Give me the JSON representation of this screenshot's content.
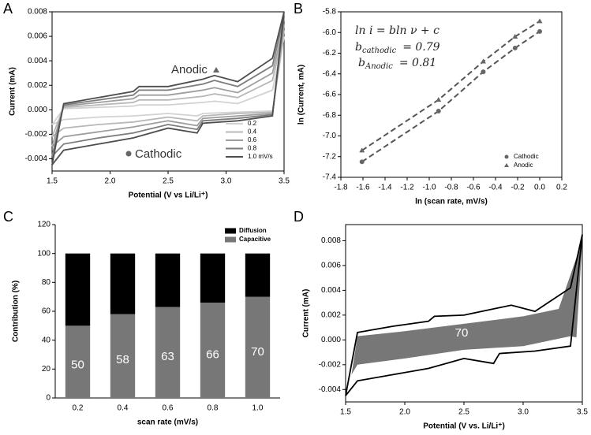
{
  "chart_data": [
    {
      "type": "line",
      "label": "A",
      "xlabel": "Potential (V vs Li/Li⁺)",
      "ylabel": "Current (mA)",
      "xlim": [
        1.5,
        3.5
      ],
      "xticks": [
        1.5,
        {
          "value": 2,
          "label": "2.0"
        },
        2.5,
        {
          "value": 3,
          "label": "3.0"
        },
        3.5
      ],
      "ylim": [
        -0.005,
        0.008
      ],
      "yticks": [
        -0.004,
        -0.002,
        {
          "value": 0,
          "label": "0.000"
        },
        0.002,
        0.004,
        0.006,
        0.008
      ],
      "axes_box": true,
      "legend": "lower right",
      "annotations": [
        "Anodic",
        "Cathodic"
      ],
      "x": [
        1.5,
        1.6,
        1.9,
        2.2,
        2.25,
        2.5,
        2.8,
        2.9,
        3.1,
        3.4,
        3.5,
        3.4,
        3.1,
        2.8,
        2.75,
        2.5,
        2.2,
        1.9,
        1.6,
        1.5
      ],
      "series": [
        {
          "name": "0.2",
          "color": "#d2d2d2",
          "values": [
            -0.0012,
            0.0001,
            0.0002,
            0.0003,
            0.0004,
            0.0004,
            0.0006,
            0.0007,
            0.0005,
            0.0016,
            0.006,
            -0.0001,
            -0.0002,
            -0.0003,
            -0.0005,
            -0.0003,
            -0.0005,
            -0.0006,
            -0.0008,
            -0.0012
          ]
        },
        {
          "name": "0.4",
          "color": "#b8b8b8",
          "values": [
            -0.0022,
            0.0002,
            0.0004,
            0.0006,
            0.0008,
            0.0008,
            0.0011,
            0.0013,
            0.001,
            0.0024,
            0.0065,
            -0.0002,
            -0.0003,
            -0.0005,
            -0.0009,
            -0.0006,
            -0.001,
            -0.0012,
            -0.0015,
            -0.0022
          ]
        },
        {
          "name": "0.6",
          "color": "#9e9e9e",
          "values": [
            -0.003,
            0.0003,
            0.0006,
            0.0009,
            0.0012,
            0.0012,
            0.0016,
            0.0018,
            0.0014,
            0.003,
            0.007,
            -0.0003,
            -0.0005,
            -0.0007,
            -0.0013,
            -0.0009,
            -0.0014,
            -0.0018,
            -0.0022,
            -0.003
          ]
        },
        {
          "name": "0.8",
          "color": "#7c7c7c",
          "values": [
            -0.0038,
            0.0004,
            0.0008,
            0.0012,
            0.0016,
            0.0016,
            0.0021,
            0.0024,
            0.0019,
            0.0036,
            0.0076,
            -0.0004,
            -0.0007,
            -0.0009,
            -0.0016,
            -0.0012,
            -0.0019,
            -0.0023,
            -0.0028,
            -0.0038
          ]
        },
        {
          "name": "1.0 mV/s",
          "color": "#4e4e4e",
          "values": [
            -0.0045,
            0.0005,
            0.001,
            0.0015,
            0.0019,
            0.0019,
            0.0025,
            0.0028,
            0.0023,
            0.0042,
            0.008,
            -0.0005,
            -0.0009,
            -0.0011,
            -0.0019,
            -0.0015,
            -0.0023,
            -0.0028,
            -0.0033,
            -0.0045
          ]
        }
      ]
    },
    {
      "type": "scatter",
      "label": "B",
      "xlabel": "ln (scan rate, mV/s)",
      "ylabel": "ln (Current, mA)",
      "xlim": [
        -1.8,
        0.2
      ],
      "xticks": [
        -1.8,
        -1.6,
        -1.4,
        -1.2,
        {
          "value": -1,
          "label": "-1.0"
        },
        -0.8,
        -0.6,
        -0.4,
        -0.2,
        {
          "value": 0,
          "label": "0.0"
        },
        0.2
      ],
      "ylim": [
        -7.4,
        -5.8
      ],
      "yticks": [
        -7.4,
        -7.2,
        {
          "value": -7,
          "label": "-7.0"
        },
        -6.8,
        -6.6,
        -6.4,
        -6.2,
        {
          "value": -6,
          "label": "-6.0"
        },
        -5.8
      ],
      "axes_box": true,
      "legend": "lower right",
      "equation": "ln i = bln ν + c",
      "fits": [
        {
          "symbol": "b",
          "subscript": "cathodic",
          "text": "= 0.79"
        },
        {
          "symbol": "b",
          "subscript": "Anodic",
          "text": "= 0.81"
        }
      ],
      "x": [
        -1.609,
        -0.916,
        -0.511,
        -0.223,
        0
      ],
      "series": [
        {
          "name": "Cathodic",
          "color": "#666666",
          "marker": "circle",
          "values": [
            -7.25,
            -6.76,
            -6.38,
            -6.15,
            -5.99
          ]
        },
        {
          "name": "Anodic",
          "color": "#666666",
          "marker": "triangle",
          "values": [
            -7.14,
            -6.65,
            -6.28,
            -6.04,
            -5.89
          ]
        }
      ]
    },
    {
      "type": "bar",
      "label": "C",
      "xlabel": "scan rate (mV/s)",
      "ylabel": "Contribution (%)",
      "categories": [
        "0.2",
        "0.4",
        "0.6",
        "0.8",
        "1.0"
      ],
      "ylim": [
        0,
        120
      ],
      "yticks": [
        0,
        20,
        40,
        60,
        80,
        100,
        120
      ],
      "stacked": true,
      "legend": "upper right",
      "series": [
        {
          "name": "Capacitive",
          "color": "#777777",
          "values": [
            50,
            58,
            63,
            66,
            70
          ]
        },
        {
          "name": "Diffusion",
          "color": "#000000",
          "values": [
            50,
            42,
            37,
            34,
            30
          ]
        }
      ]
    },
    {
      "type": "line",
      "label": "D",
      "xlabel": "Potential (V vs. Li/Li⁺)",
      "ylabel": "Current (mA)",
      "xlim": [
        1.5,
        3.5
      ],
      "xticks": [
        1.5,
        {
          "value": 2,
          "label": "2.0"
        },
        2.5,
        {
          "value": 3,
          "label": "3.0"
        },
        3.5
      ],
      "ylim": [
        -0.005,
        0.0093
      ],
      "yticks": [
        -0.004,
        -0.002,
        {
          "value": 0,
          "label": "0.000"
        },
        0.002,
        0.004,
        0.006,
        0.008
      ],
      "axes_box": true,
      "annotations": [
        "70"
      ],
      "series": [
        {
          "color": "#777777",
          "fill": true,
          "x": [
            1.55,
            1.6,
            2.0,
            2.5,
            3.0,
            3.3,
            3.5,
            3.45,
            3.4,
            3.0,
            2.5,
            2.0,
            1.6,
            1.55
          ],
          "values": [
            -0.0028,
            0.0003,
            0.0007,
            0.0013,
            0.0019,
            0.0025,
            0.008,
            0.0002,
            0.0003,
            -0.0005,
            -0.0008,
            -0.0015,
            -0.002,
            -0.0028
          ]
        },
        {
          "color": "#000000",
          "x": [
            1.5,
            1.6,
            1.9,
            2.2,
            2.25,
            2.5,
            2.8,
            2.9,
            3.1,
            3.4,
            3.5,
            3.4,
            3.1,
            2.8,
            2.75,
            2.5,
            2.2,
            1.9,
            1.6,
            1.5
          ],
          "values": [
            -0.0045,
            0.0006,
            0.0011,
            0.0015,
            0.0019,
            0.002,
            0.0026,
            0.0028,
            0.0023,
            0.0042,
            0.0085,
            -0.0005,
            -0.0009,
            -0.0011,
            -0.0019,
            -0.0015,
            -0.0023,
            -0.0028,
            -0.0033,
            -0.0045
          ]
        }
      ]
    }
  ]
}
